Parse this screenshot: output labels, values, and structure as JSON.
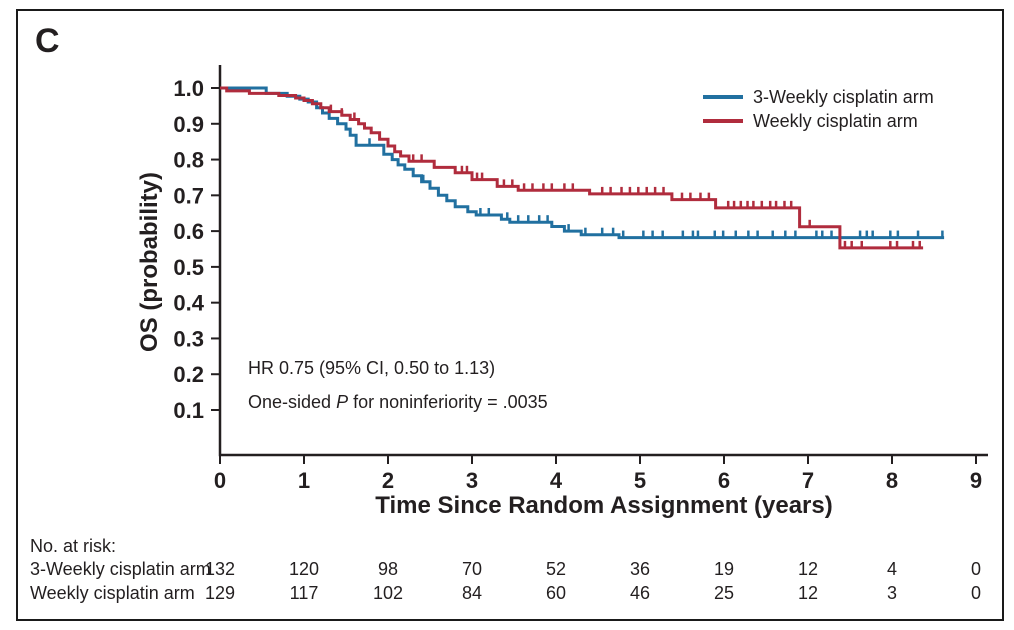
{
  "figure": {
    "panel_label": "C"
  },
  "chart_data": {
    "type": "line",
    "subtype": "kaplan-meier-step",
    "title": "",
    "xlabel": "Time Since Random Assignment (years)",
    "ylabel": "OS (probability)",
    "xlim": [
      0,
      9
    ],
    "ylim": [
      0,
      1.0
    ],
    "x_ticks": [
      0,
      1,
      2,
      3,
      4,
      5,
      6,
      7,
      8,
      9
    ],
    "y_ticks": [
      1.0,
      0.9,
      0.8,
      0.7,
      0.6,
      0.5,
      0.4,
      0.3,
      0.2,
      0.1
    ],
    "grid": false,
    "legend_position": "top-right",
    "ink_color": "#231f20",
    "series": [
      {
        "name": "3-Weekly cisplatin arm",
        "color": "#2170a0",
        "step_points": [
          [
            0,
            1.0
          ],
          [
            0.55,
            0.985
          ],
          [
            0.8,
            0.977
          ],
          [
            0.95,
            0.969
          ],
          [
            1.05,
            0.961
          ],
          [
            1.15,
            0.945
          ],
          [
            1.22,
            0.93
          ],
          [
            1.3,
            0.915
          ],
          [
            1.4,
            0.9
          ],
          [
            1.5,
            0.885
          ],
          [
            1.55,
            0.868
          ],
          [
            1.62,
            0.84
          ],
          [
            1.95,
            0.815
          ],
          [
            2.05,
            0.8
          ],
          [
            2.12,
            0.785
          ],
          [
            2.2,
            0.773
          ],
          [
            2.3,
            0.755
          ],
          [
            2.4,
            0.738
          ],
          [
            2.5,
            0.72
          ],
          [
            2.6,
            0.7
          ],
          [
            2.7,
            0.685
          ],
          [
            2.8,
            0.668
          ],
          [
            2.95,
            0.654
          ],
          [
            3.05,
            0.645
          ],
          [
            3.35,
            0.633
          ],
          [
            3.45,
            0.625
          ],
          [
            3.95,
            0.613
          ],
          [
            4.1,
            0.6
          ],
          [
            4.3,
            0.59
          ],
          [
            4.75,
            0.582
          ]
        ],
        "end_time": 8.62,
        "censor_times": [
          1.78,
          2.42,
          3.1,
          3.2,
          3.42,
          3.55,
          3.67,
          3.8,
          3.9,
          4.15,
          4.35,
          4.55,
          4.68,
          4.8,
          5.04,
          5.15,
          5.27,
          5.51,
          5.63,
          5.69,
          5.89,
          5.99,
          6.14,
          6.29,
          6.4,
          6.58,
          6.73,
          6.85,
          7.1,
          7.17,
          7.28,
          7.62,
          7.7,
          7.77,
          7.98,
          8.07,
          8.31,
          8.6
        ]
      },
      {
        "name": "Weekly cisplatin arm",
        "color": "#b02c3d",
        "step_points": [
          [
            0,
            1.0
          ],
          [
            0.08,
            0.992
          ],
          [
            0.35,
            0.985
          ],
          [
            0.7,
            0.979
          ],
          [
            0.9,
            0.972
          ],
          [
            1.0,
            0.965
          ],
          [
            1.1,
            0.956
          ],
          [
            1.2,
            0.945
          ],
          [
            1.3,
            0.934
          ],
          [
            1.45,
            0.924
          ],
          [
            1.55,
            0.912
          ],
          [
            1.65,
            0.9
          ],
          [
            1.72,
            0.888
          ],
          [
            1.8,
            0.875
          ],
          [
            1.9,
            0.857
          ],
          [
            2.0,
            0.838
          ],
          [
            2.08,
            0.822
          ],
          [
            2.15,
            0.81
          ],
          [
            2.25,
            0.795
          ],
          [
            2.55,
            0.778
          ],
          [
            2.8,
            0.763
          ],
          [
            3.0,
            0.744
          ],
          [
            3.3,
            0.725
          ],
          [
            3.55,
            0.714
          ],
          [
            4.4,
            0.704
          ],
          [
            5.38,
            0.688
          ],
          [
            5.9,
            0.665
          ],
          [
            6.9,
            0.612
          ],
          [
            7.38,
            0.553
          ]
        ],
        "end_time": 8.37,
        "censor_times": [
          1.32,
          1.45,
          1.6,
          2.3,
          2.4,
          2.88,
          2.94,
          3.0,
          3.06,
          3.12,
          3.38,
          3.48,
          3.62,
          3.72,
          3.85,
          3.95,
          4.1,
          4.2,
          4.55,
          4.65,
          4.78,
          4.88,
          4.98,
          5.08,
          5.18,
          5.28,
          5.5,
          5.6,
          5.72,
          5.82,
          6.05,
          6.12,
          6.2,
          6.28,
          6.35,
          6.45,
          6.55,
          6.62,
          6.72,
          6.8,
          7.02,
          7.44,
          7.52,
          7.64,
          7.98,
          8.06,
          8.25,
          8.33
        ]
      }
    ],
    "annotation": {
      "line1": "HR 0.75 (95% CI, 0.50 to 1.13)",
      "line2_prefix": "One-sided ",
      "line2_italic": "P",
      "line2_suffix": " for noninferiority = .0035"
    },
    "risk_table": {
      "title": "No. at risk:",
      "time_points": [
        0,
        1,
        2,
        3,
        4,
        5,
        6,
        7,
        8,
        9
      ],
      "rows": [
        {
          "label": "3-Weekly cisplatin arm",
          "counts": [
            132,
            120,
            98,
            70,
            52,
            36,
            19,
            12,
            4,
            0
          ]
        },
        {
          "label": "Weekly cisplatin arm",
          "counts": [
            129,
            117,
            102,
            84,
            60,
            46,
            25,
            12,
            3,
            0
          ]
        }
      ]
    }
  }
}
